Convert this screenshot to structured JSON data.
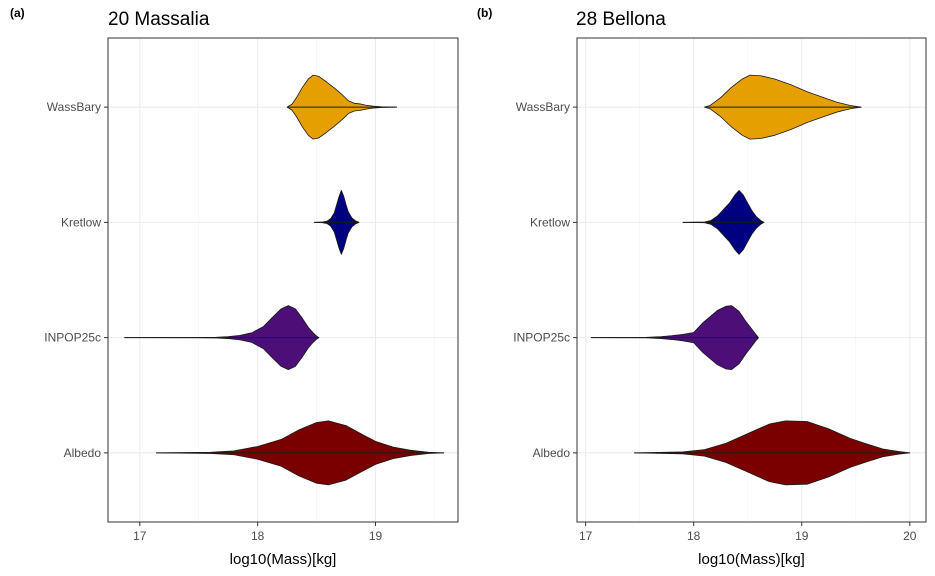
{
  "chart_data": [
    {
      "type": "violin",
      "panel_tag": "(a)",
      "title": "20 Massalia",
      "xlabel": "log10(Mass)[kg]",
      "ylabel": "",
      "xlim": [
        16.73,
        19.7
      ],
      "xticks": [
        17,
        18,
        19
      ],
      "xtick_labels": [
        "17",
        "18",
        "19"
      ],
      "categories": [
        "WassBary",
        "Kretlow",
        "INPOP25c",
        "Albedo"
      ],
      "grid": true,
      "series": [
        {
          "name": "WassBary",
          "color": "#E69F00",
          "range": [
            18.25,
            19.18
          ],
          "profile": [
            [
              18.25,
              0.0
            ],
            [
              18.29,
              0.09
            ],
            [
              18.33,
              0.3
            ],
            [
              18.38,
              0.62
            ],
            [
              18.43,
              0.88
            ],
            [
              18.47,
              1.0
            ],
            [
              18.52,
              0.96
            ],
            [
              18.58,
              0.8
            ],
            [
              18.65,
              0.6
            ],
            [
              18.72,
              0.38
            ],
            [
              18.77,
              0.2
            ],
            [
              18.82,
              0.12
            ],
            [
              18.87,
              0.1
            ],
            [
              18.92,
              0.06
            ],
            [
              18.98,
              0.03
            ],
            [
              19.05,
              0.01
            ],
            [
              19.18,
              0.0
            ]
          ]
        },
        {
          "name": "Kretlow",
          "color": "#000080",
          "range": [
            18.48,
            18.86
          ],
          "profile": [
            [
              18.48,
              0.0
            ],
            [
              18.55,
              0.01
            ],
            [
              18.59,
              0.04
            ],
            [
              18.62,
              0.12
            ],
            [
              18.65,
              0.3
            ],
            [
              18.67,
              0.55
            ],
            [
              18.69,
              0.8
            ],
            [
              18.71,
              1.0
            ],
            [
              18.73,
              0.82
            ],
            [
              18.75,
              0.55
            ],
            [
              18.77,
              0.32
            ],
            [
              18.8,
              0.14
            ],
            [
              18.83,
              0.05
            ],
            [
              18.86,
              0.0
            ]
          ]
        },
        {
          "name": "INPOP25c",
          "color": "#4B0F77",
          "range": [
            16.87,
            18.52
          ],
          "profile": [
            [
              16.87,
              0.0
            ],
            [
              17.5,
              0.003
            ],
            [
              17.65,
              0.01
            ],
            [
              17.75,
              0.03
            ],
            [
              17.85,
              0.07
            ],
            [
              17.95,
              0.15
            ],
            [
              18.05,
              0.35
            ],
            [
              18.13,
              0.65
            ],
            [
              18.2,
              0.9
            ],
            [
              18.26,
              1.0
            ],
            [
              18.32,
              0.9
            ],
            [
              18.38,
              0.6
            ],
            [
              18.43,
              0.32
            ],
            [
              18.47,
              0.15
            ],
            [
              18.5,
              0.05
            ],
            [
              18.52,
              0.0
            ]
          ]
        },
        {
          "name": "Albedo",
          "color": "#7A0000",
          "range": [
            17.14,
            19.58
          ],
          "profile": [
            [
              17.14,
              0.0
            ],
            [
              17.6,
              0.02
            ],
            [
              17.8,
              0.06
            ],
            [
              18.0,
              0.2
            ],
            [
              18.2,
              0.42
            ],
            [
              18.35,
              0.72
            ],
            [
              18.5,
              0.95
            ],
            [
              18.6,
              1.0
            ],
            [
              18.75,
              0.85
            ],
            [
              18.9,
              0.55
            ],
            [
              19.0,
              0.36
            ],
            [
              19.15,
              0.18
            ],
            [
              19.3,
              0.08
            ],
            [
              19.45,
              0.02
            ],
            [
              19.58,
              0.0
            ]
          ]
        }
      ]
    },
    {
      "type": "violin",
      "panel_tag": "(b)",
      "title": "28 Bellona",
      "xlabel": "log10(Mass)[kg]",
      "ylabel": "",
      "xlim": [
        16.92,
        20.15
      ],
      "xticks": [
        17,
        18,
        19,
        20
      ],
      "xtick_labels": [
        "17",
        "18",
        "19",
        "20"
      ],
      "categories": [
        "WassBary",
        "Kretlow",
        "INPOP25c",
        "Albedo"
      ],
      "grid": true,
      "series": [
        {
          "name": "WassBary",
          "color": "#E69F00",
          "range": [
            18.1,
            19.55
          ],
          "profile": [
            [
              18.1,
              0.0
            ],
            [
              18.15,
              0.05
            ],
            [
              18.25,
              0.3
            ],
            [
              18.35,
              0.62
            ],
            [
              18.45,
              0.88
            ],
            [
              18.52,
              1.0
            ],
            [
              18.62,
              0.98
            ],
            [
              18.75,
              0.88
            ],
            [
              18.9,
              0.7
            ],
            [
              19.05,
              0.48
            ],
            [
              19.2,
              0.3
            ],
            [
              19.33,
              0.15
            ],
            [
              19.45,
              0.05
            ],
            [
              19.55,
              0.0
            ]
          ]
        },
        {
          "name": "Kretlow",
          "color": "#000080",
          "range": [
            17.9,
            18.65
          ],
          "profile": [
            [
              17.9,
              0.0
            ],
            [
              18.1,
              0.01
            ],
            [
              18.16,
              0.06
            ],
            [
              18.22,
              0.2
            ],
            [
              18.28,
              0.42
            ],
            [
              18.33,
              0.6
            ],
            [
              18.38,
              0.85
            ],
            [
              18.42,
              1.0
            ],
            [
              18.46,
              0.85
            ],
            [
              18.5,
              0.6
            ],
            [
              18.54,
              0.36
            ],
            [
              18.58,
              0.18
            ],
            [
              18.62,
              0.06
            ],
            [
              18.65,
              0.0
            ]
          ]
        },
        {
          "name": "INPOP25c",
          "color": "#4B0F77",
          "range": [
            17.05,
            18.6
          ],
          "profile": [
            [
              17.05,
              0.0
            ],
            [
              17.55,
              0.005
            ],
            [
              17.7,
              0.03
            ],
            [
              17.8,
              0.06
            ],
            [
              17.9,
              0.1
            ],
            [
              18.0,
              0.16
            ],
            [
              18.08,
              0.45
            ],
            [
              18.15,
              0.65
            ],
            [
              18.22,
              0.85
            ],
            [
              18.3,
              0.98
            ],
            [
              18.35,
              1.0
            ],
            [
              18.42,
              0.82
            ],
            [
              18.48,
              0.52
            ],
            [
              18.53,
              0.3
            ],
            [
              18.57,
              0.12
            ],
            [
              18.6,
              0.0
            ]
          ]
        },
        {
          "name": "Albedo",
          "color": "#7A0000",
          "range": [
            17.45,
            20.0
          ],
          "profile": [
            [
              17.45,
              0.0
            ],
            [
              17.9,
              0.03
            ],
            [
              18.1,
              0.1
            ],
            [
              18.3,
              0.3
            ],
            [
              18.5,
              0.6
            ],
            [
              18.7,
              0.9
            ],
            [
              18.85,
              1.0
            ],
            [
              19.05,
              0.98
            ],
            [
              19.25,
              0.75
            ],
            [
              19.45,
              0.45
            ],
            [
              19.6,
              0.28
            ],
            [
              19.75,
              0.12
            ],
            [
              19.9,
              0.04
            ],
            [
              20.0,
              0.0
            ]
          ]
        }
      ]
    }
  ]
}
